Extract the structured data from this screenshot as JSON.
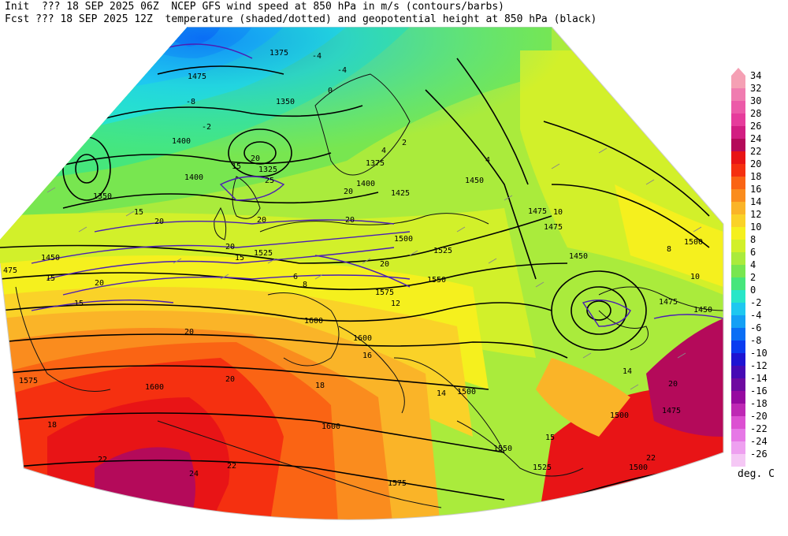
{
  "header": {
    "line1_init": "Init  ??? 18 SEP 2025 06Z",
    "line1_title": "NCEP GFS wind speed at 850 hPa in m/s (contours/barbs)",
    "line2_fcst": "Fcst ??? 18 SEP 2025 12Z",
    "line2_title": "temperature (shaded/dotted) and geopotential height at 850 hPa (black)"
  },
  "legend": {
    "units": "deg. C",
    "levels": [
      {
        "value": "34",
        "color": "#f5a0b4"
      },
      {
        "value": "32",
        "color": "#f07cb0"
      },
      {
        "value": "30",
        "color": "#ec5aa8"
      },
      {
        "value": "28",
        "color": "#e63c9c"
      },
      {
        "value": "26",
        "color": "#d21e82"
      },
      {
        "value": "24",
        "color": "#b40a5a"
      },
      {
        "value": "22",
        "color": "#e81416"
      },
      {
        "value": "20",
        "color": "#f53010"
      },
      {
        "value": "18",
        "color": "#fa6414"
      },
      {
        "value": "16",
        "color": "#fa8c1e"
      },
      {
        "value": "14",
        "color": "#fab428"
      },
      {
        "value": "12",
        "color": "#fad228"
      },
      {
        "value": "10",
        "color": "#f5f01e"
      },
      {
        "value": "8",
        "color": "#d2f02a"
      },
      {
        "value": "6",
        "color": "#aaeb3c"
      },
      {
        "value": "4",
        "color": "#78e650"
      },
      {
        "value": "2",
        "color": "#46e67c"
      },
      {
        "value": "0",
        "color": "#28e6c8"
      },
      {
        "value": "-2",
        "color": "#1ec8f0"
      },
      {
        "value": "-4",
        "color": "#14a0f5"
      },
      {
        "value": "-6",
        "color": "#0a6ef5"
      },
      {
        "value": "-8",
        "color": "#0a3cf0"
      },
      {
        "value": "-10",
        "color": "#1e14d2"
      },
      {
        "value": "-12",
        "color": "#460ab4"
      },
      {
        "value": "-14",
        "color": "#6e0aa0"
      },
      {
        "value": "-16",
        "color": "#960aa0"
      },
      {
        "value": "-18",
        "color": "#be28b4"
      },
      {
        "value": "-20",
        "color": "#dc50d2"
      },
      {
        "value": "-22",
        "color": "#e678e6"
      },
      {
        "value": "-24",
        "color": "#eea0f0"
      },
      {
        "value": "-26",
        "color": "#f5c8f5"
      }
    ]
  },
  "map": {
    "height_labels": [
      "1375",
      "1475",
      "1350",
      "1400",
      "1400",
      "1350",
      "1325",
      "1375",
      "1400",
      "1425",
      "1450",
      "1475",
      "1500",
      "1525",
      "1550",
      "1575",
      "1600",
      "1600",
      "1600",
      "1575",
      "1600",
      "1550",
      "1525",
      "1500",
      "1500",
      "1475",
      "1450",
      "1475",
      "1450",
      "1500",
      "1500",
      "1575",
      "475",
      "1450",
      "1475",
      "1525"
    ],
    "wind_labels": [
      "15",
      "20",
      "20",
      "15",
      "20",
      "25",
      "20",
      "20",
      "15",
      "20",
      "15",
      "15",
      "20",
      "15",
      "20"
    ],
    "temp_labels": [
      "-4",
      "-8",
      "-2",
      "-4",
      "0",
      "4",
      "8",
      "10",
      "14",
      "20",
      "22",
      "18",
      "12",
      "14",
      "18",
      "20",
      "22",
      "24",
      "22",
      "20",
      "8",
      "6",
      "4",
      "2",
      "10",
      "16"
    ]
  }
}
